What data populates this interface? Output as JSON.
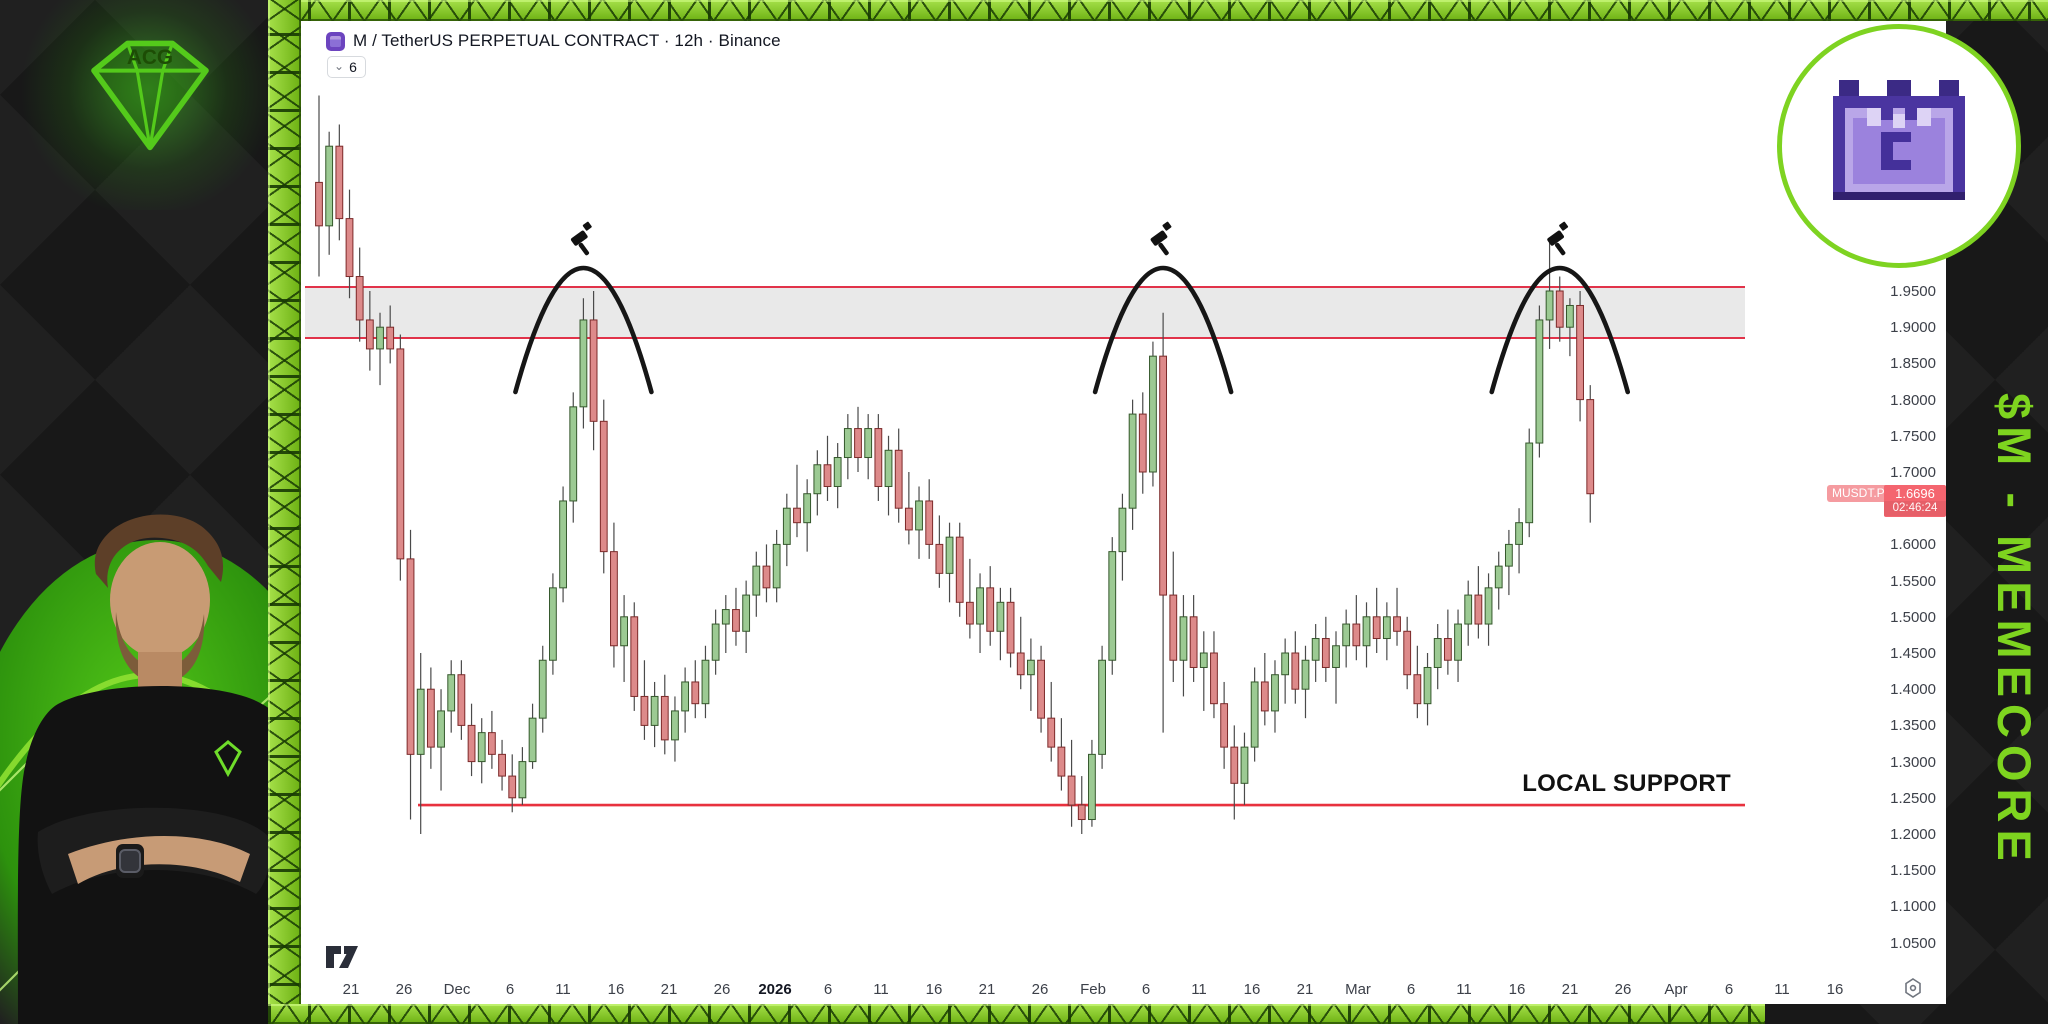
{
  "branding": {
    "left_logo_icon": "acg-diamond-logo",
    "left_logo_text": "ACG",
    "right_logo_icon": "memecore-pixel-castle-logo",
    "side_text": "$M - MEMECORE",
    "accent_green": "#7ed321",
    "frame_green": "#7cc41d"
  },
  "chart_header": {
    "symbol_icon": "memecore-symbol-icon",
    "title": "M / TetherUS PERPETUAL CONTRACT · 12h · Binance",
    "candle_badge": "6"
  },
  "price_label": {
    "tag": "MUSDT.P",
    "price": "1.6696",
    "countdown": "02:46:24"
  },
  "watermark_icon": "tradingview-logo",
  "gear_icon": "time-axis-settings-gear",
  "chart_data": {
    "type": "candlestick",
    "symbol": "MUSDT.P",
    "title": "M / TetherUS PERPETUAL CONTRACT",
    "interval": "12h",
    "exchange": "Binance",
    "ylim": [
      1.0,
      2.32
    ],
    "grid": false,
    "y_axis": {
      "ticks": [
        "1.9500",
        "1.9000",
        "1.8500",
        "1.8000",
        "1.7500",
        "1.7000",
        "1.6000",
        "1.5500",
        "1.5000",
        "1.4500",
        "1.4000",
        "1.3500",
        "1.3000",
        "1.2500",
        "1.2000",
        "1.1500",
        "1.1000",
        "1.0500"
      ]
    },
    "x_axis": {
      "ticks": [
        {
          "label": "21"
        },
        {
          "label": "26"
        },
        {
          "label": "Dec"
        },
        {
          "label": "6"
        },
        {
          "label": "11"
        },
        {
          "label": "16"
        },
        {
          "label": "21"
        },
        {
          "label": "26"
        },
        {
          "label": "2026",
          "bold": true
        },
        {
          "label": "6"
        },
        {
          "label": "11"
        },
        {
          "label": "16"
        },
        {
          "label": "21"
        },
        {
          "label": "26"
        },
        {
          "label": "Feb"
        },
        {
          "label": "6"
        },
        {
          "label": "11"
        },
        {
          "label": "16"
        },
        {
          "label": "21"
        },
        {
          "label": "Mar"
        },
        {
          "label": "6"
        },
        {
          "label": "11"
        },
        {
          "label": "16"
        },
        {
          "label": "21"
        },
        {
          "label": "26"
        },
        {
          "label": "Apr"
        },
        {
          "label": "6"
        },
        {
          "label": "11"
        },
        {
          "label": "16"
        }
      ]
    },
    "resistance_zone": {
      "top": 1.9555,
      "bottom": 1.885,
      "fill": "#e9e9e9",
      "line_color": "#e1334a"
    },
    "support": {
      "price": 1.24,
      "label": "LOCAL SUPPORT",
      "line_color": "#e8313e"
    },
    "current_price": 1.6696,
    "candle_colors": {
      "up_fill": "#9cca93",
      "up_border": "#35582c",
      "down_fill": "#dd8a8a",
      "down_border": "#7c2a2a",
      "wick": "#4a4a4a"
    },
    "annotations": {
      "arcs": [
        {
          "name": "rejection-arc-1",
          "day": 26,
          "icon": "gavel-icon"
        },
        {
          "name": "rejection-arc-2",
          "day": 83,
          "icon": "gavel-icon"
        },
        {
          "name": "rejection-arc-3",
          "day": 122,
          "icon": "gavel-icon"
        }
      ]
    },
    "candles": [
      [
        2.1,
        2.22,
        1.97,
        2.04
      ],
      [
        2.04,
        2.17,
        2.0,
        2.15
      ],
      [
        2.15,
        2.18,
        2.02,
        2.05
      ],
      [
        2.05,
        2.09,
        1.94,
        1.97
      ],
      [
        1.97,
        2.01,
        1.88,
        1.91
      ],
      [
        1.91,
        1.95,
        1.84,
        1.87
      ],
      [
        1.87,
        1.92,
        1.82,
        1.9
      ],
      [
        1.9,
        1.93,
        1.85,
        1.87
      ],
      [
        1.87,
        1.89,
        1.55,
        1.58
      ],
      [
        1.58,
        1.62,
        1.22,
        1.31
      ],
      [
        1.31,
        1.45,
        1.2,
        1.4
      ],
      [
        1.4,
        1.43,
        1.29,
        1.32
      ],
      [
        1.32,
        1.4,
        1.26,
        1.37
      ],
      [
        1.37,
        1.44,
        1.34,
        1.42
      ],
      [
        1.42,
        1.44,
        1.33,
        1.35
      ],
      [
        1.35,
        1.38,
        1.28,
        1.3
      ],
      [
        1.3,
        1.36,
        1.27,
        1.34
      ],
      [
        1.34,
        1.37,
        1.29,
        1.31
      ],
      [
        1.31,
        1.33,
        1.26,
        1.28
      ],
      [
        1.28,
        1.31,
        1.23,
        1.25
      ],
      [
        1.25,
        1.32,
        1.24,
        1.3
      ],
      [
        1.3,
        1.38,
        1.29,
        1.36
      ],
      [
        1.36,
        1.46,
        1.34,
        1.44
      ],
      [
        1.44,
        1.56,
        1.42,
        1.54
      ],
      [
        1.54,
        1.68,
        1.52,
        1.66
      ],
      [
        1.66,
        1.81,
        1.63,
        1.79
      ],
      [
        1.79,
        1.94,
        1.76,
        1.91
      ],
      [
        1.91,
        1.95,
        1.73,
        1.77
      ],
      [
        1.77,
        1.8,
        1.56,
        1.59
      ],
      [
        1.59,
        1.63,
        1.43,
        1.46
      ],
      [
        1.46,
        1.53,
        1.41,
        1.5
      ],
      [
        1.5,
        1.52,
        1.37,
        1.39
      ],
      [
        1.39,
        1.44,
        1.33,
        1.35
      ],
      [
        1.35,
        1.41,
        1.32,
        1.39
      ],
      [
        1.39,
        1.42,
        1.31,
        1.33
      ],
      [
        1.33,
        1.39,
        1.3,
        1.37
      ],
      [
        1.37,
        1.43,
        1.34,
        1.41
      ],
      [
        1.41,
        1.44,
        1.36,
        1.38
      ],
      [
        1.38,
        1.46,
        1.36,
        1.44
      ],
      [
        1.44,
        1.51,
        1.42,
        1.49
      ],
      [
        1.49,
        1.53,
        1.45,
        1.51
      ],
      [
        1.51,
        1.54,
        1.46,
        1.48
      ],
      [
        1.48,
        1.55,
        1.45,
        1.53
      ],
      [
        1.53,
        1.59,
        1.5,
        1.57
      ],
      [
        1.57,
        1.6,
        1.52,
        1.54
      ],
      [
        1.54,
        1.62,
        1.52,
        1.6
      ],
      [
        1.6,
        1.67,
        1.57,
        1.65
      ],
      [
        1.65,
        1.71,
        1.61,
        1.63
      ],
      [
        1.63,
        1.69,
        1.59,
        1.67
      ],
      [
        1.67,
        1.73,
        1.64,
        1.71
      ],
      [
        1.71,
        1.75,
        1.66,
        1.68
      ],
      [
        1.68,
        1.74,
        1.65,
        1.72
      ],
      [
        1.72,
        1.78,
        1.69,
        1.76
      ],
      [
        1.76,
        1.79,
        1.7,
        1.72
      ],
      [
        1.72,
        1.78,
        1.69,
        1.76
      ],
      [
        1.76,
        1.78,
        1.66,
        1.68
      ],
      [
        1.68,
        1.75,
        1.64,
        1.73
      ],
      [
        1.73,
        1.76,
        1.63,
        1.65
      ],
      [
        1.65,
        1.7,
        1.6,
        1.62
      ],
      [
        1.62,
        1.68,
        1.58,
        1.66
      ],
      [
        1.66,
        1.69,
        1.58,
        1.6
      ],
      [
        1.6,
        1.64,
        1.54,
        1.56
      ],
      [
        1.56,
        1.63,
        1.52,
        1.61
      ],
      [
        1.61,
        1.63,
        1.5,
        1.52
      ],
      [
        1.52,
        1.58,
        1.47,
        1.49
      ],
      [
        1.49,
        1.56,
        1.45,
        1.54
      ],
      [
        1.54,
        1.57,
        1.46,
        1.48
      ],
      [
        1.48,
        1.54,
        1.44,
        1.52
      ],
      [
        1.52,
        1.54,
        1.43,
        1.45
      ],
      [
        1.45,
        1.5,
        1.4,
        1.42
      ],
      [
        1.42,
        1.47,
        1.37,
        1.44
      ],
      [
        1.44,
        1.46,
        1.34,
        1.36
      ],
      [
        1.36,
        1.41,
        1.3,
        1.32
      ],
      [
        1.32,
        1.36,
        1.26,
        1.28
      ],
      [
        1.28,
        1.33,
        1.21,
        1.24
      ],
      [
        1.24,
        1.28,
        1.2,
        1.22
      ],
      [
        1.22,
        1.33,
        1.21,
        1.31
      ],
      [
        1.31,
        1.46,
        1.29,
        1.44
      ],
      [
        1.44,
        1.61,
        1.42,
        1.59
      ],
      [
        1.59,
        1.67,
        1.55,
        1.65
      ],
      [
        1.65,
        1.8,
        1.62,
        1.78
      ],
      [
        1.78,
        1.81,
        1.67,
        1.7
      ],
      [
        1.7,
        1.88,
        1.68,
        1.86
      ],
      [
        1.86,
        1.92,
        1.34,
        1.53
      ],
      [
        1.53,
        1.59,
        1.41,
        1.44
      ],
      [
        1.44,
        1.53,
        1.39,
        1.5
      ],
      [
        1.5,
        1.53,
        1.41,
        1.43
      ],
      [
        1.43,
        1.48,
        1.37,
        1.45
      ],
      [
        1.45,
        1.48,
        1.36,
        1.38
      ],
      [
        1.38,
        1.41,
        1.29,
        1.32
      ],
      [
        1.32,
        1.35,
        1.22,
        1.27
      ],
      [
        1.27,
        1.34,
        1.24,
        1.32
      ],
      [
        1.32,
        1.43,
        1.3,
        1.41
      ],
      [
        1.41,
        1.45,
        1.35,
        1.37
      ],
      [
        1.37,
        1.44,
        1.34,
        1.42
      ],
      [
        1.42,
        1.47,
        1.38,
        1.45
      ],
      [
        1.45,
        1.48,
        1.38,
        1.4
      ],
      [
        1.4,
        1.46,
        1.36,
        1.44
      ],
      [
        1.44,
        1.49,
        1.41,
        1.47
      ],
      [
        1.47,
        1.5,
        1.41,
        1.43
      ],
      [
        1.43,
        1.48,
        1.38,
        1.46
      ],
      [
        1.46,
        1.51,
        1.43,
        1.49
      ],
      [
        1.49,
        1.53,
        1.44,
        1.46
      ],
      [
        1.46,
        1.52,
        1.43,
        1.5
      ],
      [
        1.5,
        1.54,
        1.45,
        1.47
      ],
      [
        1.47,
        1.52,
        1.44,
        1.5
      ],
      [
        1.5,
        1.54,
        1.46,
        1.48
      ],
      [
        1.48,
        1.5,
        1.4,
        1.42
      ],
      [
        1.42,
        1.46,
        1.36,
        1.38
      ],
      [
        1.38,
        1.45,
        1.35,
        1.43
      ],
      [
        1.43,
        1.49,
        1.4,
        1.47
      ],
      [
        1.47,
        1.51,
        1.42,
        1.44
      ],
      [
        1.44,
        1.51,
        1.41,
        1.49
      ],
      [
        1.49,
        1.55,
        1.46,
        1.53
      ],
      [
        1.53,
        1.57,
        1.47,
        1.49
      ],
      [
        1.49,
        1.56,
        1.46,
        1.54
      ],
      [
        1.54,
        1.59,
        1.51,
        1.57
      ],
      [
        1.57,
        1.62,
        1.53,
        1.6
      ],
      [
        1.6,
        1.65,
        1.56,
        1.63
      ],
      [
        1.63,
        1.76,
        1.61,
        1.74
      ],
      [
        1.74,
        1.93,
        1.72,
        1.91
      ],
      [
        1.91,
        2.02,
        1.87,
        1.95
      ],
      [
        1.95,
        1.97,
        1.88,
        1.9
      ],
      [
        1.9,
        1.94,
        1.86,
        1.93
      ],
      [
        1.93,
        1.95,
        1.77,
        1.8
      ],
      [
        1.8,
        1.82,
        1.63,
        1.67
      ]
    ]
  }
}
